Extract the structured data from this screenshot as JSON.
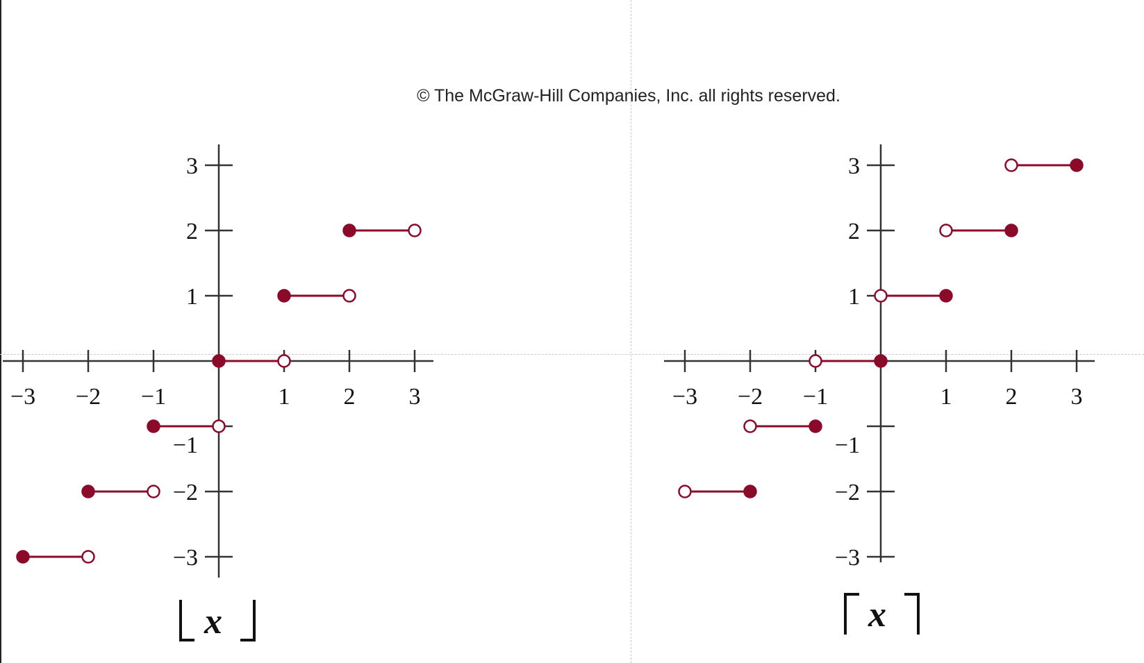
{
  "copyright": "© The McGraw-Hill Companies, Inc. all rights reserved.",
  "colors": {
    "segment": "#8b0a2a",
    "axis": "#333333",
    "text": "#111111"
  },
  "chart_data": [
    {
      "type": "line",
      "function_label": "x",
      "notation": "floor",
      "xlim": [
        -3,
        3
      ],
      "ylim": [
        -3,
        3
      ],
      "x_ticks": [
        -3,
        -2,
        -1,
        1,
        2,
        3
      ],
      "y_ticks": [
        -3,
        -2,
        -1,
        1,
        2,
        3
      ],
      "x_tick_labels": [
        "−3",
        "−2",
        "−1",
        "1",
        "2",
        "3"
      ],
      "y_tick_labels": [
        "−3",
        "−2",
        "−1",
        "1",
        "2",
        "3"
      ],
      "segments": [
        {
          "x_start": -3,
          "x_end": -2,
          "y": -3,
          "start_closed": true,
          "end_closed": false
        },
        {
          "x_start": -2,
          "x_end": -1,
          "y": -2,
          "start_closed": true,
          "end_closed": false
        },
        {
          "x_start": -1,
          "x_end": 0,
          "y": -1,
          "start_closed": true,
          "end_closed": false
        },
        {
          "x_start": 0,
          "x_end": 1,
          "y": 0,
          "start_closed": true,
          "end_closed": false
        },
        {
          "x_start": 1,
          "x_end": 2,
          "y": 1,
          "start_closed": true,
          "end_closed": false
        },
        {
          "x_start": 2,
          "x_end": 3,
          "y": 2,
          "start_closed": true,
          "end_closed": false
        }
      ]
    },
    {
      "type": "line",
      "function_label": "x",
      "notation": "ceiling",
      "xlim": [
        -3,
        3
      ],
      "ylim": [
        -3,
        3
      ],
      "x_ticks": [
        -3,
        -2,
        -1,
        1,
        2,
        3
      ],
      "y_ticks": [
        -3,
        -2,
        -1,
        1,
        2,
        3
      ],
      "x_tick_labels": [
        "−3",
        "−2",
        "−1",
        "1",
        "2",
        "3"
      ],
      "y_tick_labels": [
        "−3",
        "−2",
        "−1",
        "1",
        "2",
        "3"
      ],
      "segments": [
        {
          "x_start": -3,
          "x_end": -2,
          "y": -2,
          "start_closed": false,
          "end_closed": true
        },
        {
          "x_start": -2,
          "x_end": -1,
          "y": -1,
          "start_closed": false,
          "end_closed": true
        },
        {
          "x_start": -1,
          "x_end": 0,
          "y": 0,
          "start_closed": false,
          "end_closed": true
        },
        {
          "x_start": 0,
          "x_end": 1,
          "y": 1,
          "start_closed": false,
          "end_closed": true
        },
        {
          "x_start": 1,
          "x_end": 2,
          "y": 2,
          "start_closed": false,
          "end_closed": true
        },
        {
          "x_start": 2,
          "x_end": 3,
          "y": 3,
          "start_closed": false,
          "end_closed": true
        }
      ]
    }
  ]
}
